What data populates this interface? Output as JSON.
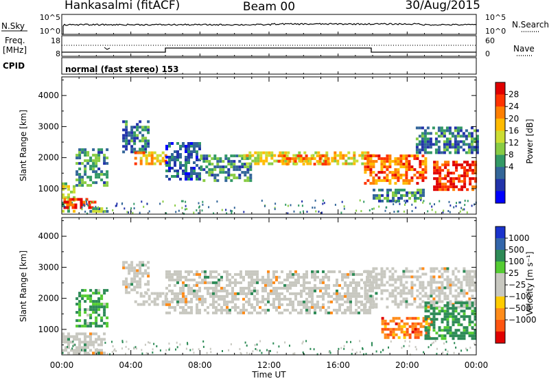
{
  "header": {
    "station": "Hankasalmi (fitACF)",
    "beam": "Beam 00",
    "date": "30/Aug/2015"
  },
  "panels": {
    "noise": {
      "left_label": "N.Sky",
      "left_ticks": [
        "10^5",
        "10^0"
      ],
      "right_ticks": [
        "10^5",
        "10^0"
      ],
      "right_label": "N.Search"
    },
    "freq": {
      "left_label_1": "Freq.",
      "left_label_2": "[MHz]",
      "left_ticks": [
        "18",
        "8"
      ],
      "right_ticks": [
        "60",
        "0"
      ],
      "right_label": "Nave"
    },
    "cpid": {
      "label": "CPID",
      "text": "normal (fast stereo) 153"
    }
  },
  "power_colorbar": {
    "label": "Power [dB]",
    "ticks": [
      "28",
      "24",
      "20",
      "16",
      "12",
      "8",
      "4"
    ],
    "colors": [
      "#e00000",
      "#ff3300",
      "#ff7f00",
      "#ffbb00",
      "#ccdd33",
      "#88cc44",
      "#339966",
      "#336699",
      "#2233aa",
      "#0000ff"
    ]
  },
  "velocity_colorbar": {
    "label": "Velocity [m s⁻¹]",
    "ticks": [
      "1000",
      "500",
      "100",
      "25",
      "−25",
      "−100",
      "−500",
      "−1000"
    ],
    "colors": [
      "#1a33cc",
      "#3366aa",
      "#2e8b57",
      "#55cc33",
      "#c8c8c0",
      "#c8c8c0",
      "#ffcc00",
      "#ff8c1a",
      "#ff5511",
      "#e00000"
    ]
  },
  "chart_data": [
    {
      "type": "heatmap",
      "name": "Power",
      "ylabel": "Slant Range [km]",
      "xlabel": "Time UT",
      "xlim": [
        "00:00",
        "24:00"
      ],
      "x_ticks": [
        "00:00",
        "04:00",
        "08:00",
        "12:00",
        "16:00",
        "20:00",
        "00:00"
      ],
      "ylim": [
        180,
        4600
      ],
      "y_ticks": [
        1000,
        2000,
        3000,
        4000
      ],
      "clim": [
        0,
        30
      ],
      "regions": [
        {
          "t0": 0.0,
          "t1": 0.7,
          "r0": 300,
          "r1": 1200,
          "value": 14
        },
        {
          "t0": 0.1,
          "t1": 2.0,
          "r0": 350,
          "r1": 700,
          "value": 26
        },
        {
          "t0": 0.8,
          "t1": 2.6,
          "r0": 1100,
          "r1": 2300,
          "value": 10
        },
        {
          "t0": 1.6,
          "t1": 2.6,
          "r0": 300,
          "r1": 400,
          "value": 12
        },
        {
          "t0": 3.5,
          "t1": 5.0,
          "r0": 2200,
          "r1": 3200,
          "value": 8
        },
        {
          "t0": 4.2,
          "t1": 6.0,
          "r0": 1800,
          "r1": 2200,
          "value": 20
        },
        {
          "t0": 6.0,
          "t1": 8.0,
          "r0": 1300,
          "r1": 2500,
          "value": 7
        },
        {
          "t0": 8.0,
          "t1": 11.0,
          "r0": 1300,
          "r1": 2100,
          "value": 10
        },
        {
          "t0": 10.5,
          "t1": 18.0,
          "r0": 1800,
          "r1": 2200,
          "value": 17
        },
        {
          "t0": 12.5,
          "t1": 15.5,
          "r0": 1800,
          "r1": 2100,
          "value": 22
        },
        {
          "t0": 17.5,
          "t1": 21.0,
          "r0": 1200,
          "r1": 2100,
          "value": 23
        },
        {
          "t0": 18.0,
          "t1": 21.0,
          "r0": 600,
          "r1": 1000,
          "value": 10
        },
        {
          "t0": 20.5,
          "t1": 24.0,
          "r0": 2200,
          "r1": 3000,
          "value": 8
        },
        {
          "t0": 21.5,
          "t1": 24.0,
          "r0": 1000,
          "r1": 1900,
          "value": 27
        }
      ]
    },
    {
      "type": "heatmap",
      "name": "Velocity",
      "ylabel": "Slant Range [km]",
      "xlabel": "Time UT",
      "xlim": [
        "00:00",
        "24:00"
      ],
      "x_ticks": [
        "00:00",
        "04:00",
        "08:00",
        "12:00",
        "16:00",
        "20:00",
        "00:00"
      ],
      "ylim": [
        180,
        4600
      ],
      "y_ticks": [
        1000,
        2000,
        3000,
        4000
      ],
      "clim": [
        -1000,
        1000
      ],
      "regions": [
        {
          "t0": 0.0,
          "t1": 2.5,
          "r0": 200,
          "r1": 900,
          "value": 0
        },
        {
          "t0": 0.8,
          "t1": 2.6,
          "r0": 1100,
          "r1": 2300,
          "value": 100
        },
        {
          "t0": 3.5,
          "t1": 5.0,
          "r0": 2200,
          "r1": 3200,
          "value": 0
        },
        {
          "t0": 4.2,
          "t1": 6.0,
          "r0": 1800,
          "r1": 2200,
          "value": 0
        },
        {
          "t0": 6.0,
          "t1": 18.0,
          "r0": 1500,
          "r1": 2900,
          "value": 0
        },
        {
          "t0": 17.5,
          "t1": 24.0,
          "r0": 1700,
          "r1": 3000,
          "value": 0
        },
        {
          "t0": 18.5,
          "t1": 21.5,
          "r0": 700,
          "r1": 1400,
          "value": -300
        },
        {
          "t0": 21.0,
          "t1": 24.0,
          "r0": 700,
          "r1": 1900,
          "value": 200
        }
      ]
    }
  ]
}
